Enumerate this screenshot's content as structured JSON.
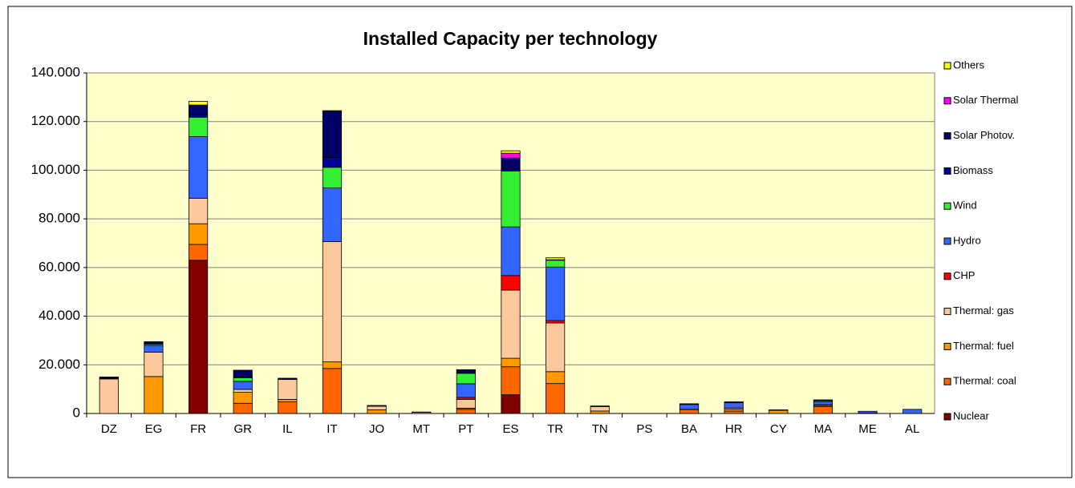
{
  "chart_data": {
    "type": "stacked_bar",
    "title": "Installed Capacity per technology",
    "categories": [
      "DZ",
      "EG",
      "FR",
      "GR",
      "IL",
      "IT",
      "JO",
      "MT",
      "PT",
      "ES",
      "TR",
      "TN",
      "PS",
      "BA",
      "HR",
      "CY",
      "MA",
      "ME",
      "AL"
    ],
    "series": [
      {
        "name": "Nuclear",
        "color": "#800000",
        "values": [
          0,
          0,
          63000,
          0,
          0,
          0,
          0,
          0,
          0,
          7700,
          0,
          0,
          0,
          0,
          0,
          0,
          0,
          0,
          0
        ]
      },
      {
        "name": "Thermal: coal",
        "color": "#ff6600",
        "values": [
          0,
          0,
          6500,
          4200,
          4800,
          18500,
          0,
          0,
          1700,
          11500,
          12300,
          0,
          0,
          1600,
          1000,
          0,
          2800,
          200,
          0
        ]
      },
      {
        "name": "Thermal: fuel",
        "color": "#ff9900",
        "values": [
          0,
          15200,
          8500,
          4500,
          1000,
          2700,
          1500,
          500,
          500,
          3500,
          4900,
          1000,
          0,
          100,
          800,
          1300,
          500,
          0,
          0
        ]
      },
      {
        "name": "Thermal: gas",
        "color": "#fcc99c",
        "values": [
          14200,
          10000,
          10500,
          1200,
          8200,
          49500,
          1500,
          0,
          3600,
          28000,
          20000,
          1800,
          0,
          0,
          500,
          0,
          300,
          0,
          0
        ]
      },
      {
        "name": "CHP",
        "color": "#ff0000",
        "values": [
          0,
          0,
          0,
          0,
          0,
          0,
          0,
          0,
          800,
          6000,
          1000,
          0,
          0,
          0,
          0,
          0,
          0,
          0,
          0
        ]
      },
      {
        "name": "Hydro",
        "color": "#3366ff",
        "values": [
          300,
          2800,
          25300,
          3300,
          0,
          22000,
          0,
          0,
          5600,
          20000,
          22000,
          0,
          0,
          2000,
          2100,
          0,
          1300,
          700,
          1700
        ]
      },
      {
        "name": "Wind",
        "color": "#33ee33",
        "values": [
          0,
          500,
          8000,
          1500,
          0,
          8500,
          0,
          0,
          4300,
          23000,
          2800,
          300,
          0,
          0,
          0,
          0,
          400,
          0,
          0
        ]
      },
      {
        "name": "Biomass",
        "color": "#000099",
        "values": [
          0,
          0,
          1000,
          300,
          0,
          4000,
          0,
          0,
          300,
          800,
          200,
          0,
          0,
          0,
          0,
          0,
          0,
          0,
          0
        ]
      },
      {
        "name": "Solar Photov.",
        "color": "#000066",
        "values": [
          500,
          1000,
          4000,
          2800,
          500,
          19000,
          300,
          100,
          1200,
          4500,
          0,
          0,
          0,
          300,
          400,
          200,
          300,
          0,
          0
        ]
      },
      {
        "name": "Solar Thermal",
        "color": "#ff00ff",
        "values": [
          0,
          0,
          0,
          0,
          0,
          0,
          0,
          0,
          0,
          2000,
          0,
          0,
          0,
          0,
          0,
          0,
          0,
          0,
          0
        ]
      },
      {
        "name": "Others",
        "color": "#ffff00",
        "values": [
          0,
          0,
          1500,
          0,
          0,
          300,
          0,
          0,
          0,
          1000,
          800,
          0,
          0,
          0,
          0,
          0,
          0,
          0,
          0
        ]
      }
    ],
    "ylim": [
      0,
      140000
    ],
    "yticks": [
      0,
      {
        "value": 20000,
        "label": "20.000"
      },
      {
        "value": 40000,
        "label": "40.000"
      },
      {
        "value": 60000,
        "label": "60.000"
      },
      {
        "value": 80000,
        "label": "80.000"
      },
      {
        "value": 100000,
        "label": "100.000"
      },
      {
        "value": 120000,
        "label": "120.000"
      },
      {
        "value": 140000,
        "label": "140.000"
      }
    ],
    "grid": true,
    "legend": "right",
    "plot_background": "#ffffcc"
  }
}
